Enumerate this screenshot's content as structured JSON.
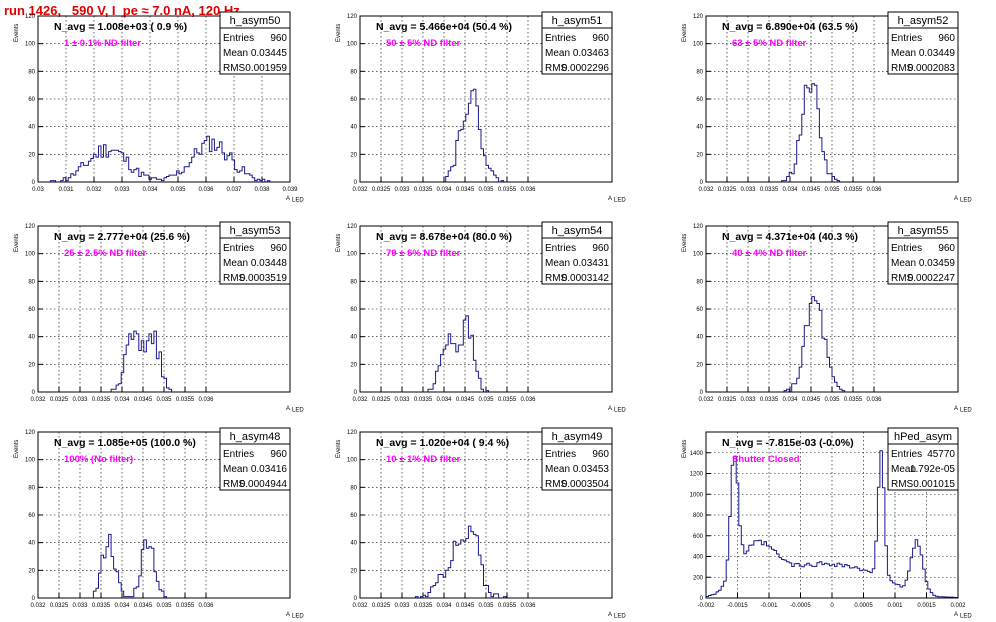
{
  "page": {
    "title": "run 1426,   590 V, I_pe ≈ 7.0 nA, 120 Hz",
    "ylabel": "Events",
    "xlabel": "A",
    "xlabel_sub": "LED",
    "colors": {
      "title": "#e00000",
      "histogram": "#1a1a8c",
      "filter_label": "#ff00ff"
    }
  },
  "chart_data": [
    {
      "type": "histogram",
      "name": "h_asym50",
      "navg": "N_avg = 1.008e+03 ( 0.9 %)",
      "filter": "1 ± 0.1% ND filter",
      "stats": [
        [
          "Entries",
          "960"
        ],
        [
          "Mean",
          "0.03445"
        ],
        [
          "RMS",
          "0.001959"
        ]
      ],
      "xlim": [
        0.03,
        0.039
      ],
      "ylim": [
        0,
        120
      ],
      "xticks": [
        "0.03",
        "0.031",
        "0.032",
        "0.033",
        "0.034",
        "0.035",
        "0.036",
        "0.037",
        "0.038",
        "0.039"
      ],
      "yticks": [
        "0",
        "20",
        "40",
        "60",
        "80",
        "100",
        "120"
      ],
      "peaks": [
        [
          0.0325,
          0.0007,
          24
        ],
        [
          0.0362,
          0.0007,
          28
        ]
      ],
      "seed": 11
    },
    {
      "type": "histogram",
      "name": "h_asym51",
      "navg": "N_avg = 5.466e+04 (50.4 %)",
      "filter": "50 ± 5% ND filter",
      "stats": [
        [
          "Entries",
          "960"
        ],
        [
          "Mean",
          "0.03463"
        ],
        [
          "RMS",
          "0.0002296"
        ]
      ],
      "xlim": [
        0.032,
        0.038
      ],
      "ylim": [
        0,
        120
      ],
      "xticks": [
        "0.032",
        "0.0325",
        "0.033",
        "0.0335",
        "0.034",
        "0.0345",
        "0.035",
        "0.0355",
        "0.036"
      ],
      "yticks": [
        "0",
        "20",
        "40",
        "60",
        "80",
        "100",
        "120"
      ],
      "peaks": [
        [
          0.03463,
          0.00024,
          62
        ]
      ],
      "seed": 22
    },
    {
      "type": "histogram",
      "name": "h_asym52",
      "navg": "N_avg = 6.890e+04 (63.5 %)",
      "filter": "63 ± 5% ND filter",
      "stats": [
        [
          "Entries",
          "960"
        ],
        [
          "Mean",
          "0.03449"
        ],
        [
          "RMS",
          "0.0002083"
        ]
      ],
      "xlim": [
        0.032,
        0.038
      ],
      "ylim": [
        0,
        120
      ],
      "xticks": [
        "0.032",
        "0.0325",
        "0.033",
        "0.0335",
        "0.034",
        "0.0345",
        "0.035",
        "0.0355",
        "0.036"
      ],
      "yticks": [
        "0",
        "20",
        "40",
        "60",
        "80",
        "100",
        "120"
      ],
      "peaks": [
        [
          0.03449,
          0.00021,
          72
        ]
      ],
      "seed": 33
    },
    {
      "type": "histogram",
      "name": "h_asym53",
      "navg": "N_avg = 2.777e+04 (25.6 %)",
      "filter": "25 ± 2.5% ND filter",
      "stats": [
        [
          "Entries",
          "960"
        ],
        [
          "Mean",
          "0.03448"
        ],
        [
          "RMS",
          "0.0003519"
        ]
      ],
      "xlim": [
        0.032,
        0.038
      ],
      "ylim": [
        0,
        120
      ],
      "xticks": [
        "0.032",
        "0.0325",
        "0.033",
        "0.0335",
        "0.034",
        "0.0345",
        "0.035",
        "0.0355",
        "0.036"
      ],
      "yticks": [
        "0",
        "20",
        "40",
        "60",
        "80",
        "100",
        "120"
      ],
      "peaks": [
        [
          0.03425,
          0.00017,
          40
        ],
        [
          0.03472,
          0.00017,
          42
        ]
      ],
      "seed": 44
    },
    {
      "type": "histogram",
      "name": "h_asym54",
      "navg": "N_avg = 8.678e+04 (80.0 %)",
      "filter": "79 ± 5% ND filter",
      "stats": [
        [
          "Entries",
          "960"
        ],
        [
          "Mean",
          "0.03431"
        ],
        [
          "RMS",
          "0.0003142"
        ]
      ],
      "xlim": [
        0.032,
        0.038
      ],
      "ylim": [
        0,
        120
      ],
      "xticks": [
        "0.032",
        "0.0325",
        "0.033",
        "0.0335",
        "0.034",
        "0.0345",
        "0.035",
        "0.0355",
        "0.036"
      ],
      "yticks": [
        "0",
        "20",
        "40",
        "60",
        "80",
        "100",
        "120"
      ],
      "peaks": [
        [
          0.0341,
          0.00017,
          40
        ],
        [
          0.03455,
          0.00016,
          46
        ]
      ],
      "seed": 55
    },
    {
      "type": "histogram",
      "name": "h_asym55",
      "navg": "N_avg = 4.371e+04 (40.3 %)",
      "filter": "40 ± 4% ND filter",
      "stats": [
        [
          "Entries",
          "960"
        ],
        [
          "Mean",
          "0.03459"
        ],
        [
          "RMS",
          "0.0002247"
        ]
      ],
      "xlim": [
        0.032,
        0.038
      ],
      "ylim": [
        0,
        120
      ],
      "xticks": [
        "0.032",
        "0.0325",
        "0.033",
        "0.0335",
        "0.034",
        "0.0345",
        "0.035",
        "0.0355",
        "0.036"
      ],
      "yticks": [
        "0",
        "20",
        "40",
        "60",
        "80",
        "100",
        "120"
      ],
      "peaks": [
        [
          0.03459,
          0.00022,
          66
        ]
      ],
      "seed": 66
    },
    {
      "type": "histogram",
      "name": "h_asym48",
      "navg": "N_avg = 1.085e+05 (100.0 %)",
      "filter": "100% (No filter)",
      "stats": [
        [
          "Entries",
          "960"
        ],
        [
          "Mean",
          "0.03416"
        ],
        [
          "RMS",
          "0.0004944"
        ]
      ],
      "xlim": [
        0.032,
        0.038
      ],
      "ylim": [
        0,
        120
      ],
      "xticks": [
        "0.032",
        "0.0325",
        "0.033",
        "0.0335",
        "0.034",
        "0.0345",
        "0.035",
        "0.0355",
        "0.036"
      ],
      "yticks": [
        "0",
        "20",
        "40",
        "60",
        "80",
        "100",
        "120"
      ],
      "peaks": [
        [
          0.03368,
          0.00015,
          42
        ],
        [
          0.03462,
          0.00015,
          44
        ]
      ],
      "seed": 77
    },
    {
      "type": "histogram",
      "name": "h_asym49",
      "navg": "N_avg = 1.020e+04 ( 9.4 %)",
      "filter": "10 ± 1% ND filter",
      "stats": [
        [
          "Entries",
          "960"
        ],
        [
          "Mean",
          "0.03453"
        ],
        [
          "RMS",
          "0.0003504"
        ]
      ],
      "xlim": [
        0.032,
        0.038
      ],
      "ylim": [
        0,
        120
      ],
      "xticks": [
        "0.032",
        "0.0325",
        "0.033",
        "0.0335",
        "0.034",
        "0.0345",
        "0.035",
        "0.0355",
        "0.036"
      ],
      "yticks": [
        "0",
        "20",
        "40",
        "60",
        "80",
        "100",
        "120"
      ],
      "peaks": [
        [
          0.0344,
          0.00035,
          38
        ],
        [
          0.03472,
          0.00012,
          22
        ]
      ],
      "seed": 88
    },
    {
      "type": "histogram",
      "name": "hPed_asym",
      "navg": "N_avg = -7.815e-03 (-0.0%)",
      "filter": "Shutter Closed",
      "stats": [
        [
          "Entries",
          "45770"
        ],
        [
          "Mean",
          "1.792e-05"
        ],
        [
          "RMS",
          "0.001015"
        ]
      ],
      "xlim": [
        -0.002,
        0.002
      ],
      "ylim": [
        0,
        1600
      ],
      "xticks": [
        "-0.002",
        "-0.0015",
        "-0.001",
        "-0.0005",
        "0",
        "0.0005",
        "0.001",
        "0.0015",
        "0.002"
      ],
      "yticks": [
        "0",
        "200",
        "400",
        "600",
        "800",
        "1000",
        "1200",
        "1400"
      ],
      "peaks": [
        [
          -0.00155,
          6e-05,
          1150
        ],
        [
          0.00078,
          5e-05,
          1250
        ],
        [
          0.00135,
          9e-05,
          500
        ],
        [
          -0.0012,
          0.0003,
          450
        ],
        [
          0.0003,
          0.0006,
          250
        ],
        [
          -0.0005,
          0.0005,
          180
        ]
      ],
      "seed": 99
    }
  ]
}
